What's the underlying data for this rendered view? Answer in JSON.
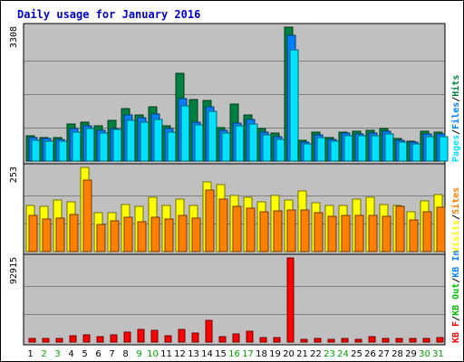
{
  "title": "Daily usage for January 2016",
  "colors": {
    "hits": "#008040",
    "files": "#0080ff",
    "pages": "#00e0ff",
    "visits": "#ffff00",
    "sites": "#ff8000",
    "kbin": "#0080ff",
    "kbout": "#00c000",
    "kbf": "#ff0000",
    "weekday": "#000000",
    "weekend": "#00a000",
    "panel": "#c0c0c0",
    "grid": "#808080"
  },
  "chart_data": {
    "type": "bar",
    "x": [
      "1",
      "2",
      "3",
      "4",
      "5",
      "6",
      "7",
      "8",
      "9",
      "10",
      "11",
      "12",
      "13",
      "14",
      "15",
      "16",
      "17",
      "18",
      "19",
      "20",
      "21",
      "22",
      "23",
      "24",
      "25",
      "26",
      "27",
      "28",
      "29",
      "30",
      "31"
    ],
    "weekend_days": [
      "2",
      "3",
      "9",
      "10",
      "16",
      "17",
      "23",
      "24",
      "30",
      "31"
    ],
    "panels": [
      {
        "id": "hits-files-pages",
        "ymax_label": "3308",
        "ylim": [
          0,
          3308
        ],
        "legend": [
          "Pages",
          "/",
          "Files",
          "/",
          "Hits"
        ],
        "series": [
          {
            "name": "Hits",
            "values": [
              630,
              590,
              580,
              920,
              950,
              870,
              1000,
              1300,
              1150,
              1330,
              880,
              2170,
              1530,
              1490,
              820,
              1410,
              1140,
              800,
              690,
              3308,
              520,
              710,
              590,
              720,
              730,
              760,
              800,
              560,
              500,
              730,
              710
            ]
          },
          {
            "name": "Files",
            "values": [
              580,
              560,
              540,
              800,
              870,
              760,
              800,
              1150,
              1080,
              1170,
              800,
              1550,
              950,
              1340,
              760,
              930,
              1020,
              720,
              600,
              3100,
              460,
              650,
              540,
              690,
              680,
              690,
              740,
              520,
              460,
              680,
              670
            ]
          },
          {
            "name": "Pages",
            "values": [
              510,
              500,
              490,
              720,
              810,
              690,
              780,
              1010,
              960,
              1030,
              720,
              1360,
              890,
              1220,
              690,
              870,
              920,
              640,
              540,
              2760,
              420,
              580,
              490,
              620,
              620,
              630,
              660,
              470,
              420,
              610,
              600
            ]
          }
        ]
      },
      {
        "id": "visits-sites",
        "ymax_label": "253",
        "ylim": [
          0,
          253
        ],
        "legend": [
          "Visits",
          "/",
          "Sites"
        ],
        "series": [
          {
            "name": "Visits",
            "values": [
              138,
              137,
              154,
              150,
              253,
              116,
              117,
              142,
              137,
              163,
              140,
              157,
              139,
              209,
              202,
              168,
              162,
              150,
              170,
              155,
              183,
              147,
              140,
              140,
              158,
              163,
              141,
              138,
              120,
              153,
              172
            ]
          },
          {
            "name": "Sites",
            "values": [
              110,
              98,
              101,
              111,
              216,
              82,
              93,
              103,
              91,
              104,
              99,
              108,
              102,
              185,
              159,
              136,
              131,
              120,
              122,
              125,
              125,
              116,
              107,
              109,
              109,
              109,
              106,
              135,
              95,
              119,
              132
            ]
          }
        ]
      },
      {
        "id": "kbin-kbout-kbf",
        "ymax_label": "92915",
        "ylim": [
          0,
          92915
        ],
        "legend": [
          "KB F",
          "/",
          "KB Out",
          "/",
          "KB In"
        ],
        "series": [
          {
            "name": "KB F",
            "values": [
              4300,
              3900,
              3600,
              7300,
              8000,
              5500,
              8200,
              10700,
              14200,
              13400,
              6800,
              14000,
              9700,
              24000,
              5600,
              9100,
              11600,
              5400,
              5000,
              92915,
              3000,
              3800,
              3000,
              4400,
              3000,
              6100,
              4300,
              3700,
              3700,
              4400,
              4700
            ]
          }
        ]
      }
    ]
  }
}
